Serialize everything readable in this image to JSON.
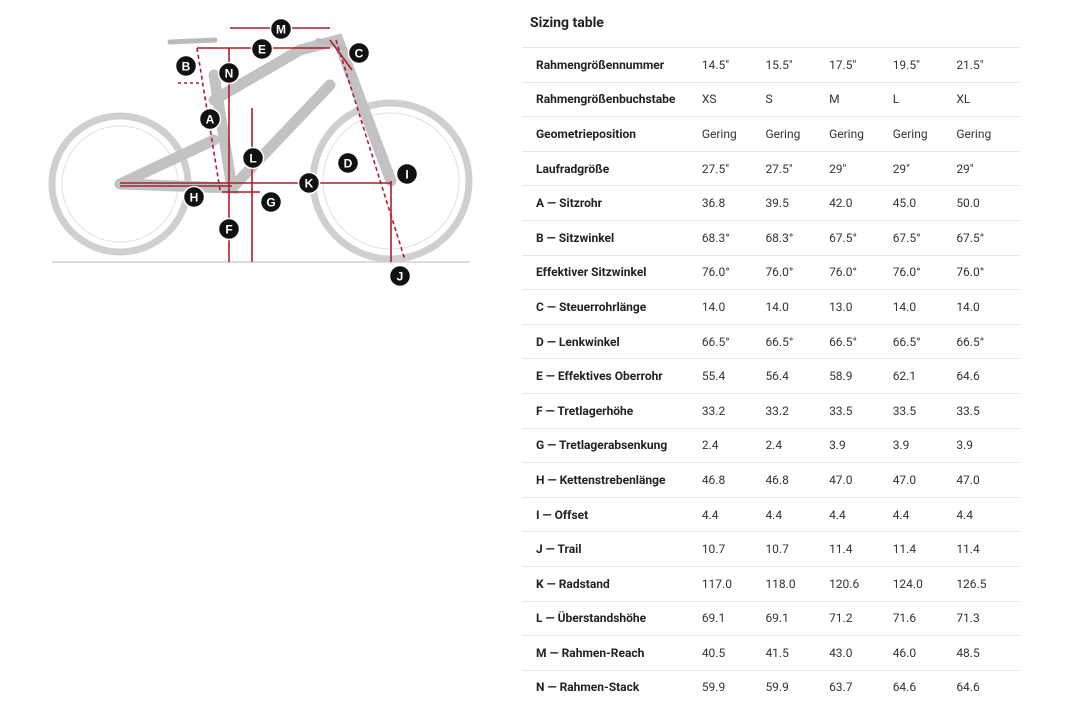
{
  "title": "Sizing table",
  "diagram": {
    "labels": [
      "M",
      "E",
      "C",
      "B",
      "N",
      "A",
      "L",
      "D",
      "I",
      "K",
      "H",
      "G",
      "F",
      "J"
    ]
  },
  "table": {
    "rows": [
      [
        "Rahmengrößennummer",
        "14.5\"",
        "15.5\"",
        "17.5\"",
        "19.5\"",
        "21.5\""
      ],
      [
        "Rahmengrößenbuchstabe",
        "XS",
        "S",
        "M",
        "L",
        "XL"
      ],
      [
        "Geometrieposition",
        "Gering",
        "Gering",
        "Gering",
        "Gering",
        "Gering"
      ],
      [
        "Laufradgröße",
        "27.5\"",
        "27.5\"",
        "29\"",
        "29\"",
        "29\""
      ],
      [
        "A — Sitzrohr",
        "36.8",
        "39.5",
        "42.0",
        "45.0",
        "50.0"
      ],
      [
        "B — Sitzwinkel",
        "68.3°",
        "68.3°",
        "67.5°",
        "67.5°",
        "67.5°"
      ],
      [
        "Effektiver Sitzwinkel",
        "76.0°",
        "76.0°",
        "76.0°",
        "76.0°",
        "76.0°"
      ],
      [
        "C — Steuerrohrlänge",
        "14.0",
        "14.0",
        "13.0",
        "14.0",
        "14.0"
      ],
      [
        "D — Lenkwinkel",
        "66.5°",
        "66.5°",
        "66.5°",
        "66.5°",
        "66.5°"
      ],
      [
        "E — Effektives Oberrohr",
        "55.4",
        "56.4",
        "58.9",
        "62.1",
        "64.6"
      ],
      [
        "F — Tretlagerhöhe",
        "33.2",
        "33.2",
        "33.5",
        "33.5",
        "33.5"
      ],
      [
        "G — Tretlagerabsenkung",
        "2.4",
        "2.4",
        "3.9",
        "3.9",
        "3.9"
      ],
      [
        "H — Kettenstrebenlänge",
        "46.8",
        "46.8",
        "47.0",
        "47.0",
        "47.0"
      ],
      [
        "I — Offset",
        "4.4",
        "4.4",
        "4.4",
        "4.4",
        "4.4"
      ],
      [
        "J — Trail",
        "10.7",
        "10.7",
        "11.4",
        "11.4",
        "11.4"
      ],
      [
        "K — Radstand",
        "117.0",
        "118.0",
        "120.6",
        "124.0",
        "126.5"
      ],
      [
        "L — Überstandshöhe",
        "69.1",
        "69.1",
        "71.2",
        "71.6",
        "71.3"
      ],
      [
        "M — Rahmen-Reach",
        "40.5",
        "41.5",
        "43.0",
        "46.0",
        "48.5"
      ],
      [
        "N — Rahmen-Stack",
        "59.9",
        "59.9",
        "63.7",
        "64.6",
        "64.6"
      ]
    ]
  }
}
